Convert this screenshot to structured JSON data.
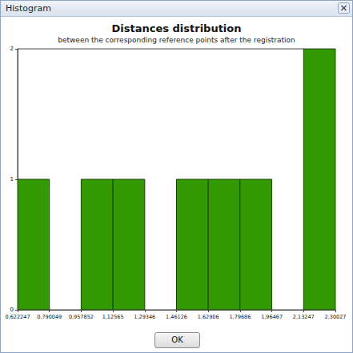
{
  "window": {
    "title": "Histogram",
    "button": "OK"
  },
  "chart_data": {
    "type": "histogram",
    "title": "Distances distribution",
    "subtitle": "between the corresponding reference points after the registration",
    "bins": [
      0.622247,
      0.790049,
      0.957852,
      1.12565,
      1.29346,
      1.46126,
      1.62906,
      1.79686,
      1.96467,
      2.13247,
      2.30027
    ],
    "values": [
      1,
      0,
      1,
      1,
      0,
      1,
      1,
      1,
      0,
      2
    ],
    "color": "#339900",
    "xlim": [
      0.622247,
      2.30027
    ],
    "xticks": [
      {
        "value": 0.622247,
        "label": "0,622247"
      },
      {
        "value": 0.790049,
        "label": "0,790049"
      },
      {
        "value": 0.957852,
        "label": "0,957852"
      },
      {
        "value": 1.12565,
        "label": "1,12565"
      },
      {
        "value": 1.29346,
        "label": "1,29346"
      },
      {
        "value": 1.46126,
        "label": "1,46126"
      },
      {
        "value": 1.62906,
        "label": "1,62906"
      },
      {
        "value": 1.79686,
        "label": "1,79686"
      },
      {
        "value": 1.96467,
        "label": "1,96467"
      },
      {
        "value": 2.13247,
        "label": "2,13247"
      },
      {
        "value": 2.30027,
        "label": "2,30027"
      }
    ],
    "ylim": [
      0,
      2
    ],
    "yticks": [
      0,
      1,
      2
    ],
    "grid": false
  }
}
